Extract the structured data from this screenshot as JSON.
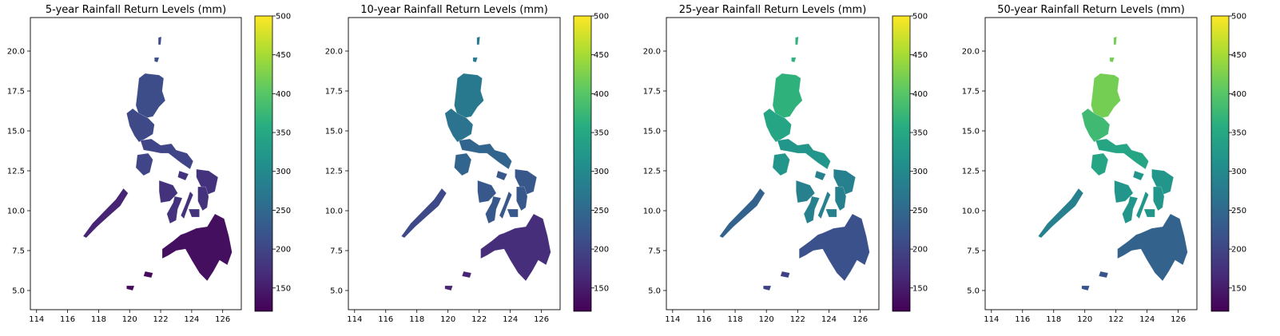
{
  "chart_data": [
    {
      "type": "choropleth-map",
      "title": "5-year Rainfall Return Levels (mm)",
      "x_ticks": [
        "114",
        "116",
        "118",
        "120",
        "122",
        "124",
        "126"
      ],
      "y_ticks": [
        "5.0",
        "7.5",
        "10.0",
        "12.5",
        "15.0",
        "17.5",
        "20.0"
      ],
      "xlim": [
        113.6,
        127.2
      ],
      "ylim": [
        3.8,
        22.1
      ],
      "colorbar": {
        "cmap": "viridis",
        "range": [
          120,
          500
        ],
        "ticks": [
          "150",
          "200",
          "250",
          "300",
          "350",
          "400",
          "450",
          "500"
        ]
      },
      "region_values_mm": {
        "northern_luzon": 210,
        "central_luzon": 205,
        "southern_luzon": 200,
        "visayas": 175,
        "palawan": 160,
        "mindanao": 135,
        "sulu": 130
      }
    },
    {
      "type": "choropleth-map",
      "title": "10-year Rainfall Return Levels (mm)",
      "x_ticks": [
        "114",
        "116",
        "118",
        "120",
        "122",
        "124",
        "126"
      ],
      "y_ticks": [
        "5.0",
        "7.5",
        "10.0",
        "12.5",
        "15.0",
        "17.5",
        "20.0"
      ],
      "xlim": [
        113.6,
        127.2
      ],
      "ylim": [
        3.8,
        22.1
      ],
      "colorbar": {
        "cmap": "viridis",
        "range": [
          120,
          500
        ],
        "ticks": [
          "150",
          "200",
          "250",
          "300",
          "350",
          "400",
          "450",
          "500"
        ]
      },
      "region_values_mm": {
        "northern_luzon": 275,
        "central_luzon": 265,
        "southern_luzon": 245,
        "visayas": 225,
        "palawan": 205,
        "mindanao": 170,
        "sulu": 160
      }
    },
    {
      "type": "choropleth-map",
      "title": "25-year Rainfall Return Levels (mm)",
      "x_ticks": [
        "114",
        "116",
        "118",
        "120",
        "122",
        "124",
        "126"
      ],
      "y_ticks": [
        "5.0",
        "7.5",
        "10.0",
        "12.5",
        "15.0",
        "17.5",
        "20.0"
      ],
      "xlim": [
        113.6,
        127.2
      ],
      "ylim": [
        3.8,
        22.1
      ],
      "colorbar": {
        "cmap": "viridis",
        "range": [
          120,
          500
        ],
        "ticks": [
          "150",
          "200",
          "250",
          "300",
          "350",
          "400",
          "450",
          "500"
        ]
      },
      "region_values_mm": {
        "northern_luzon": 365,
        "central_luzon": 345,
        "southern_luzon": 320,
        "visayas": 285,
        "palawan": 240,
        "mindanao": 215,
        "sulu": 195
      }
    },
    {
      "type": "choropleth-map",
      "title": "50-year Rainfall Return Levels (mm)",
      "x_ticks": [
        "114",
        "116",
        "118",
        "120",
        "122",
        "124",
        "126"
      ],
      "y_ticks": [
        "5.0",
        "7.5",
        "10.0",
        "12.5",
        "15.0",
        "17.5",
        "20.0"
      ],
      "xlim": [
        113.6,
        127.2
      ],
      "ylim": [
        3.8,
        22.1
      ],
      "colorbar": {
        "cmap": "viridis",
        "range": [
          120,
          500
        ],
        "ticks": [
          "150",
          "200",
          "250",
          "300",
          "350",
          "400",
          "450",
          "500"
        ]
      },
      "region_values_mm": {
        "northern_luzon": 420,
        "central_luzon": 380,
        "southern_luzon": 345,
        "visayas": 320,
        "palawan": 285,
        "mindanao": 240,
        "sulu": 220
      }
    }
  ]
}
